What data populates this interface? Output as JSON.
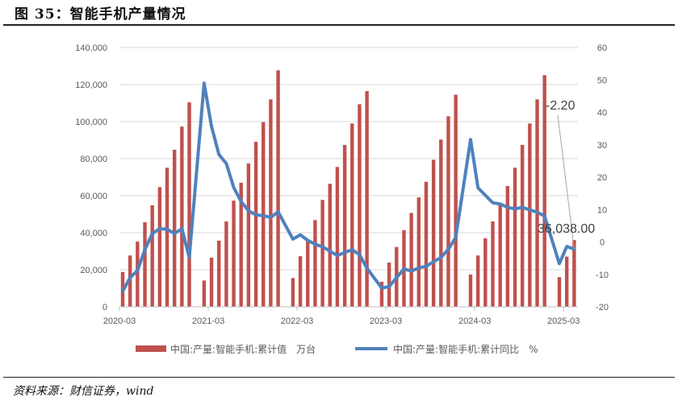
{
  "header": {
    "title": "图 35：智能手机产量情况"
  },
  "footer": {
    "source": "资料来源：财信证券，wind"
  },
  "chart_data": {
    "type": "bar+line",
    "title": "图 35：智能手机产量情况",
    "x_ticks": [
      "2020-03",
      "2021-03",
      "2022-03",
      "2023-03",
      "2024-03",
      "2025-03"
    ],
    "y_left": {
      "min": 0,
      "max": 140000,
      "step": 20000,
      "ticks": [
        "0",
        "20,000",
        "40,000",
        "60,000",
        "80,000",
        "100,000",
        "120,000",
        "140,000"
      ]
    },
    "y_right": {
      "min": -20,
      "max": 60,
      "step": 10,
      "ticks": [
        "-20",
        "-10",
        "0",
        "10",
        "20",
        "30",
        "40",
        "50",
        "60"
      ]
    },
    "grid": true,
    "legend_position": "bottom",
    "months": [
      "2020-03",
      "2020-04",
      "2020-05",
      "2020-06",
      "2020-07",
      "2020-08",
      "2020-09",
      "2020-10",
      "2020-11",
      "2020-12",
      "2021-02",
      "2021-03",
      "2021-04",
      "2021-05",
      "2021-06",
      "2021-07",
      "2021-08",
      "2021-09",
      "2021-10",
      "2021-11",
      "2021-12",
      "2022-02",
      "2022-03",
      "2022-04",
      "2022-05",
      "2022-06",
      "2022-07",
      "2022-08",
      "2022-09",
      "2022-10",
      "2022-11",
      "2022-12",
      "2023-02",
      "2023-03",
      "2023-04",
      "2023-05",
      "2023-06",
      "2023-07",
      "2023-08",
      "2023-09",
      "2023-10",
      "2023-11",
      "2023-12",
      "2024-02",
      "2024-03",
      "2024-04",
      "2024-05",
      "2024-06",
      "2024-07",
      "2024-08",
      "2024-09",
      "2024-10",
      "2024-11",
      "2024-12",
      "2025-02",
      "2025-03",
      "2025-04"
    ],
    "series": [
      {
        "name": "中国:产量:智能手机:累计值　万台",
        "type": "bar",
        "axis": "left",
        "color": "#C0504D",
        "values": [
          18800,
          27700,
          35200,
          45700,
          54800,
          64600,
          75100,
          84800,
          97300,
          110400,
          14200,
          26500,
          35700,
          46100,
          57300,
          67000,
          77400,
          89100,
          99700,
          112000,
          127700,
          15500,
          27300,
          36000,
          46800,
          57700,
          66400,
          75500,
          87400,
          99000,
          109400,
          116500,
          13500,
          23900,
          32300,
          41400,
          50700,
          59100,
          67500,
          79400,
          90300,
          102900,
          114500,
          17400,
          27700,
          37000,
          46100,
          55500,
          65200,
          75100,
          87400,
          99000,
          112000,
          125100,
          16000,
          27100,
          36038
        ]
      },
      {
        "name": "中国:产量:智能手机:累计同比　%",
        "type": "line",
        "axis": "right",
        "color": "#4F81BD",
        "values": [
          -15.2,
          -11,
          -8.8,
          -2.4,
          2.6,
          4.1,
          3.9,
          2.6,
          4.1,
          -4.8,
          49,
          35.7,
          27,
          24.2,
          16.8,
          12.5,
          9.6,
          8.4,
          8.1,
          7.6,
          9.3,
          0.9,
          2.2,
          0.5,
          -0.7,
          -1.5,
          -2.8,
          -4.2,
          -3.2,
          -2.4,
          -3.9,
          -8.1,
          -14.2,
          -13.8,
          -11,
          -8.3,
          -9,
          -8,
          -7.5,
          -6.1,
          -4.8,
          -2.2,
          1.4,
          31.6,
          16.7,
          14.4,
          12.1,
          11.7,
          10.7,
          10.2,
          10.7,
          9.9,
          9.2,
          8,
          -6.7,
          -1.4,
          -2.2
        ]
      }
    ],
    "annotations": [
      {
        "text": "-2.20",
        "series": 1,
        "month": "2025-04"
      },
      {
        "text": "36,038.00",
        "series": 0,
        "month": "2025-04"
      }
    ]
  }
}
